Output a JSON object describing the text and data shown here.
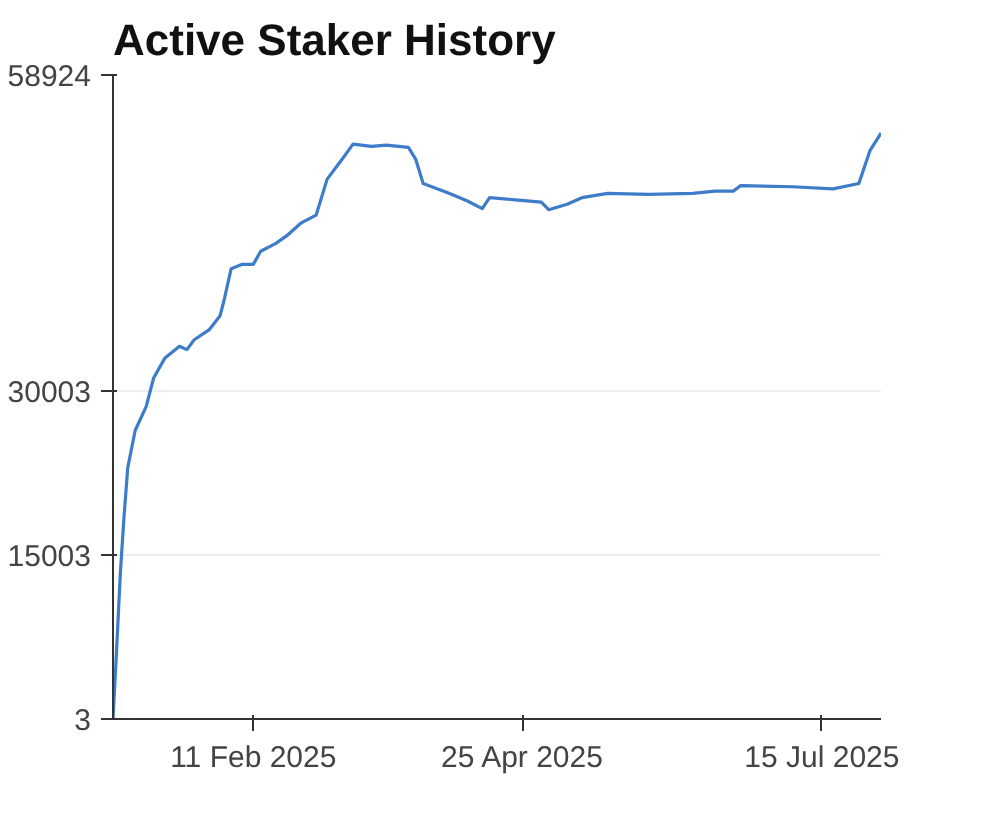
{
  "chart_data": {
    "type": "line",
    "title": "Active Staker History",
    "x": [
      "2025-01-04",
      "2025-01-05",
      "2025-01-06",
      "2025-01-07",
      "2025-01-08",
      "2025-01-10",
      "2025-01-13",
      "2025-01-15",
      "2025-01-18",
      "2025-01-22",
      "2025-01-24",
      "2025-01-26",
      "2025-01-30",
      "2025-02-02",
      "2025-02-03",
      "2025-02-05",
      "2025-02-08",
      "2025-02-11",
      "2025-02-13",
      "2025-02-17",
      "2025-02-20",
      "2025-02-24",
      "2025-02-28",
      "2025-03-03",
      "2025-03-07",
      "2025-03-10",
      "2025-03-15",
      "2025-03-19",
      "2025-03-25",
      "2025-03-27",
      "2025-03-29",
      "2025-04-05",
      "2025-04-10",
      "2025-04-14",
      "2025-04-16",
      "2025-04-23",
      "2025-04-30",
      "2025-05-02",
      "2025-05-07",
      "2025-05-11",
      "2025-05-18",
      "2025-05-29",
      "2025-06-10",
      "2025-06-16",
      "2025-06-21",
      "2025-06-23",
      "2025-07-07",
      "2025-07-18",
      "2025-07-25",
      "2025-07-28",
      "2025-07-31"
    ],
    "series": [
      {
        "color": "#3d7cc9",
        "values": [
          3,
          6500,
          13400,
          18600,
          23000,
          26400,
          28600,
          31200,
          33000,
          34100,
          33800,
          34700,
          35600,
          36900,
          38200,
          41200,
          41600,
          41600,
          42800,
          43500,
          44200,
          45400,
          46100,
          49400,
          51200,
          52600,
          52400,
          52500,
          52300,
          51200,
          49000,
          48100,
          47400,
          46700,
          47700,
          47500,
          47300,
          46600,
          47100,
          47700,
          48100,
          48000,
          48100,
          48300,
          48300,
          48800,
          48700,
          48500,
          49000,
          52000,
          53600
        ]
      }
    ],
    "xlim": [
      "2025-01-04",
      "2025-07-31"
    ],
    "xticks": [
      {
        "value": "2025-02-11",
        "label": "11 Feb 2025"
      },
      {
        "value": "2025-04-25",
        "label": "25 Apr 2025"
      },
      {
        "value": "2025-07-15",
        "label": "15 Jul 2025"
      }
    ],
    "ylim": [
      3,
      58924
    ],
    "yticks": [
      3,
      15003,
      30003,
      58924
    ],
    "grid": "y",
    "marker": "none",
    "line_style": "solid"
  }
}
